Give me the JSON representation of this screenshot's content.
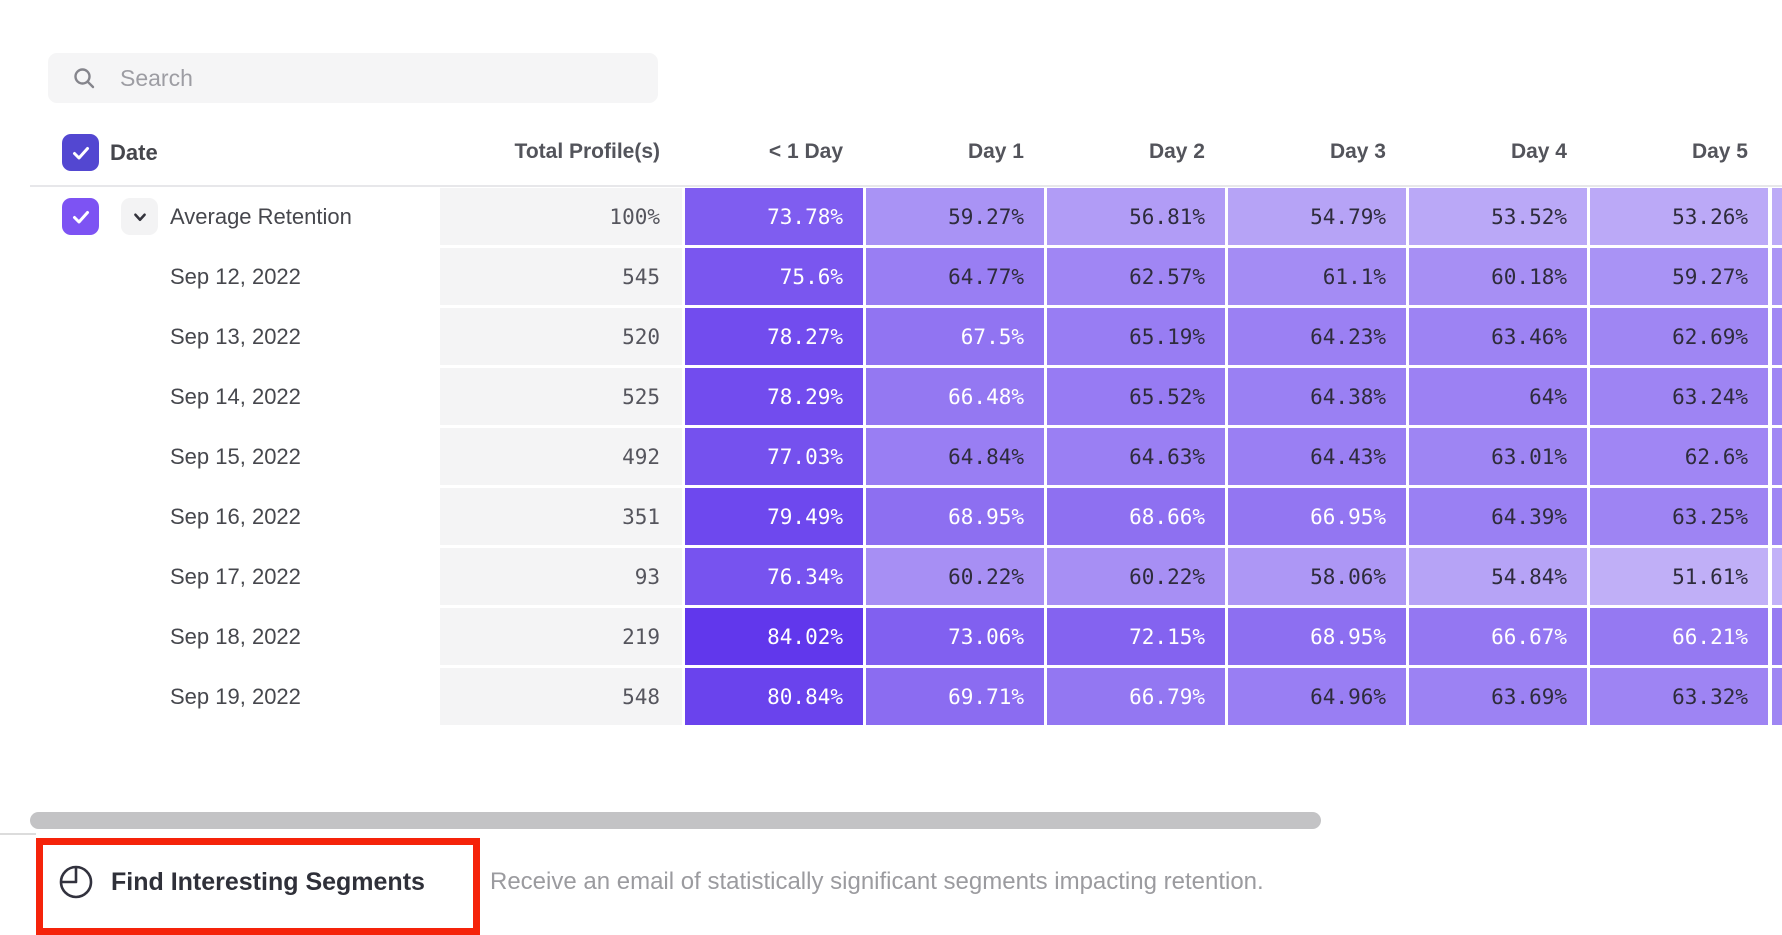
{
  "search": {
    "placeholder": "Search"
  },
  "table": {
    "columns": [
      "Date",
      "Total Profile(s)",
      "< 1 Day",
      "Day 1",
      "Day 2",
      "Day 3",
      "Day 4",
      "Day 5"
    ],
    "rows": [
      {
        "label": "Average Retention",
        "is_average": true,
        "total": "100%",
        "values": [
          73.78,
          59.27,
          56.81,
          54.79,
          53.52,
          53.26
        ]
      },
      {
        "label": "Sep 12, 2022",
        "total": "545",
        "values": [
          75.6,
          64.77,
          62.57,
          61.1,
          60.18,
          59.27
        ]
      },
      {
        "label": "Sep 13, 2022",
        "total": "520",
        "values": [
          78.27,
          67.5,
          65.19,
          64.23,
          63.46,
          62.69
        ]
      },
      {
        "label": "Sep 14, 2022",
        "total": "525",
        "values": [
          78.29,
          66.48,
          65.52,
          64.38,
          64,
          63.24
        ]
      },
      {
        "label": "Sep 15, 2022",
        "total": "492",
        "values": [
          77.03,
          64.84,
          64.63,
          64.43,
          63.01,
          62.6
        ]
      },
      {
        "label": "Sep 16, 2022",
        "total": "351",
        "values": [
          79.49,
          68.95,
          68.66,
          66.95,
          64.39,
          63.25
        ]
      },
      {
        "label": "Sep 17, 2022",
        "total": "93",
        "values": [
          76.34,
          60.22,
          60.22,
          58.06,
          54.84,
          51.61
        ]
      },
      {
        "label": "Sep 18, 2022",
        "total": "219",
        "values": [
          84.02,
          73.06,
          72.15,
          68.95,
          66.67,
          66.21
        ]
      },
      {
        "label": "Sep 19, 2022",
        "total": "548",
        "values": [
          80.84,
          69.71,
          66.79,
          64.96,
          63.69,
          63.32
        ]
      }
    ]
  },
  "footer": {
    "button_label": "Find Interesting Segments",
    "description": "Receive an email of statistically significant segments impacting retention."
  },
  "colors": {
    "accent_purple": "#6137EC",
    "header_checkbox": "#5347D1",
    "row_checkbox": "#7D53F3",
    "total_column_bg": "#F4F4F5",
    "annotation_red": "#F5230A",
    "scrollbar": "#C3C3C5"
  }
}
